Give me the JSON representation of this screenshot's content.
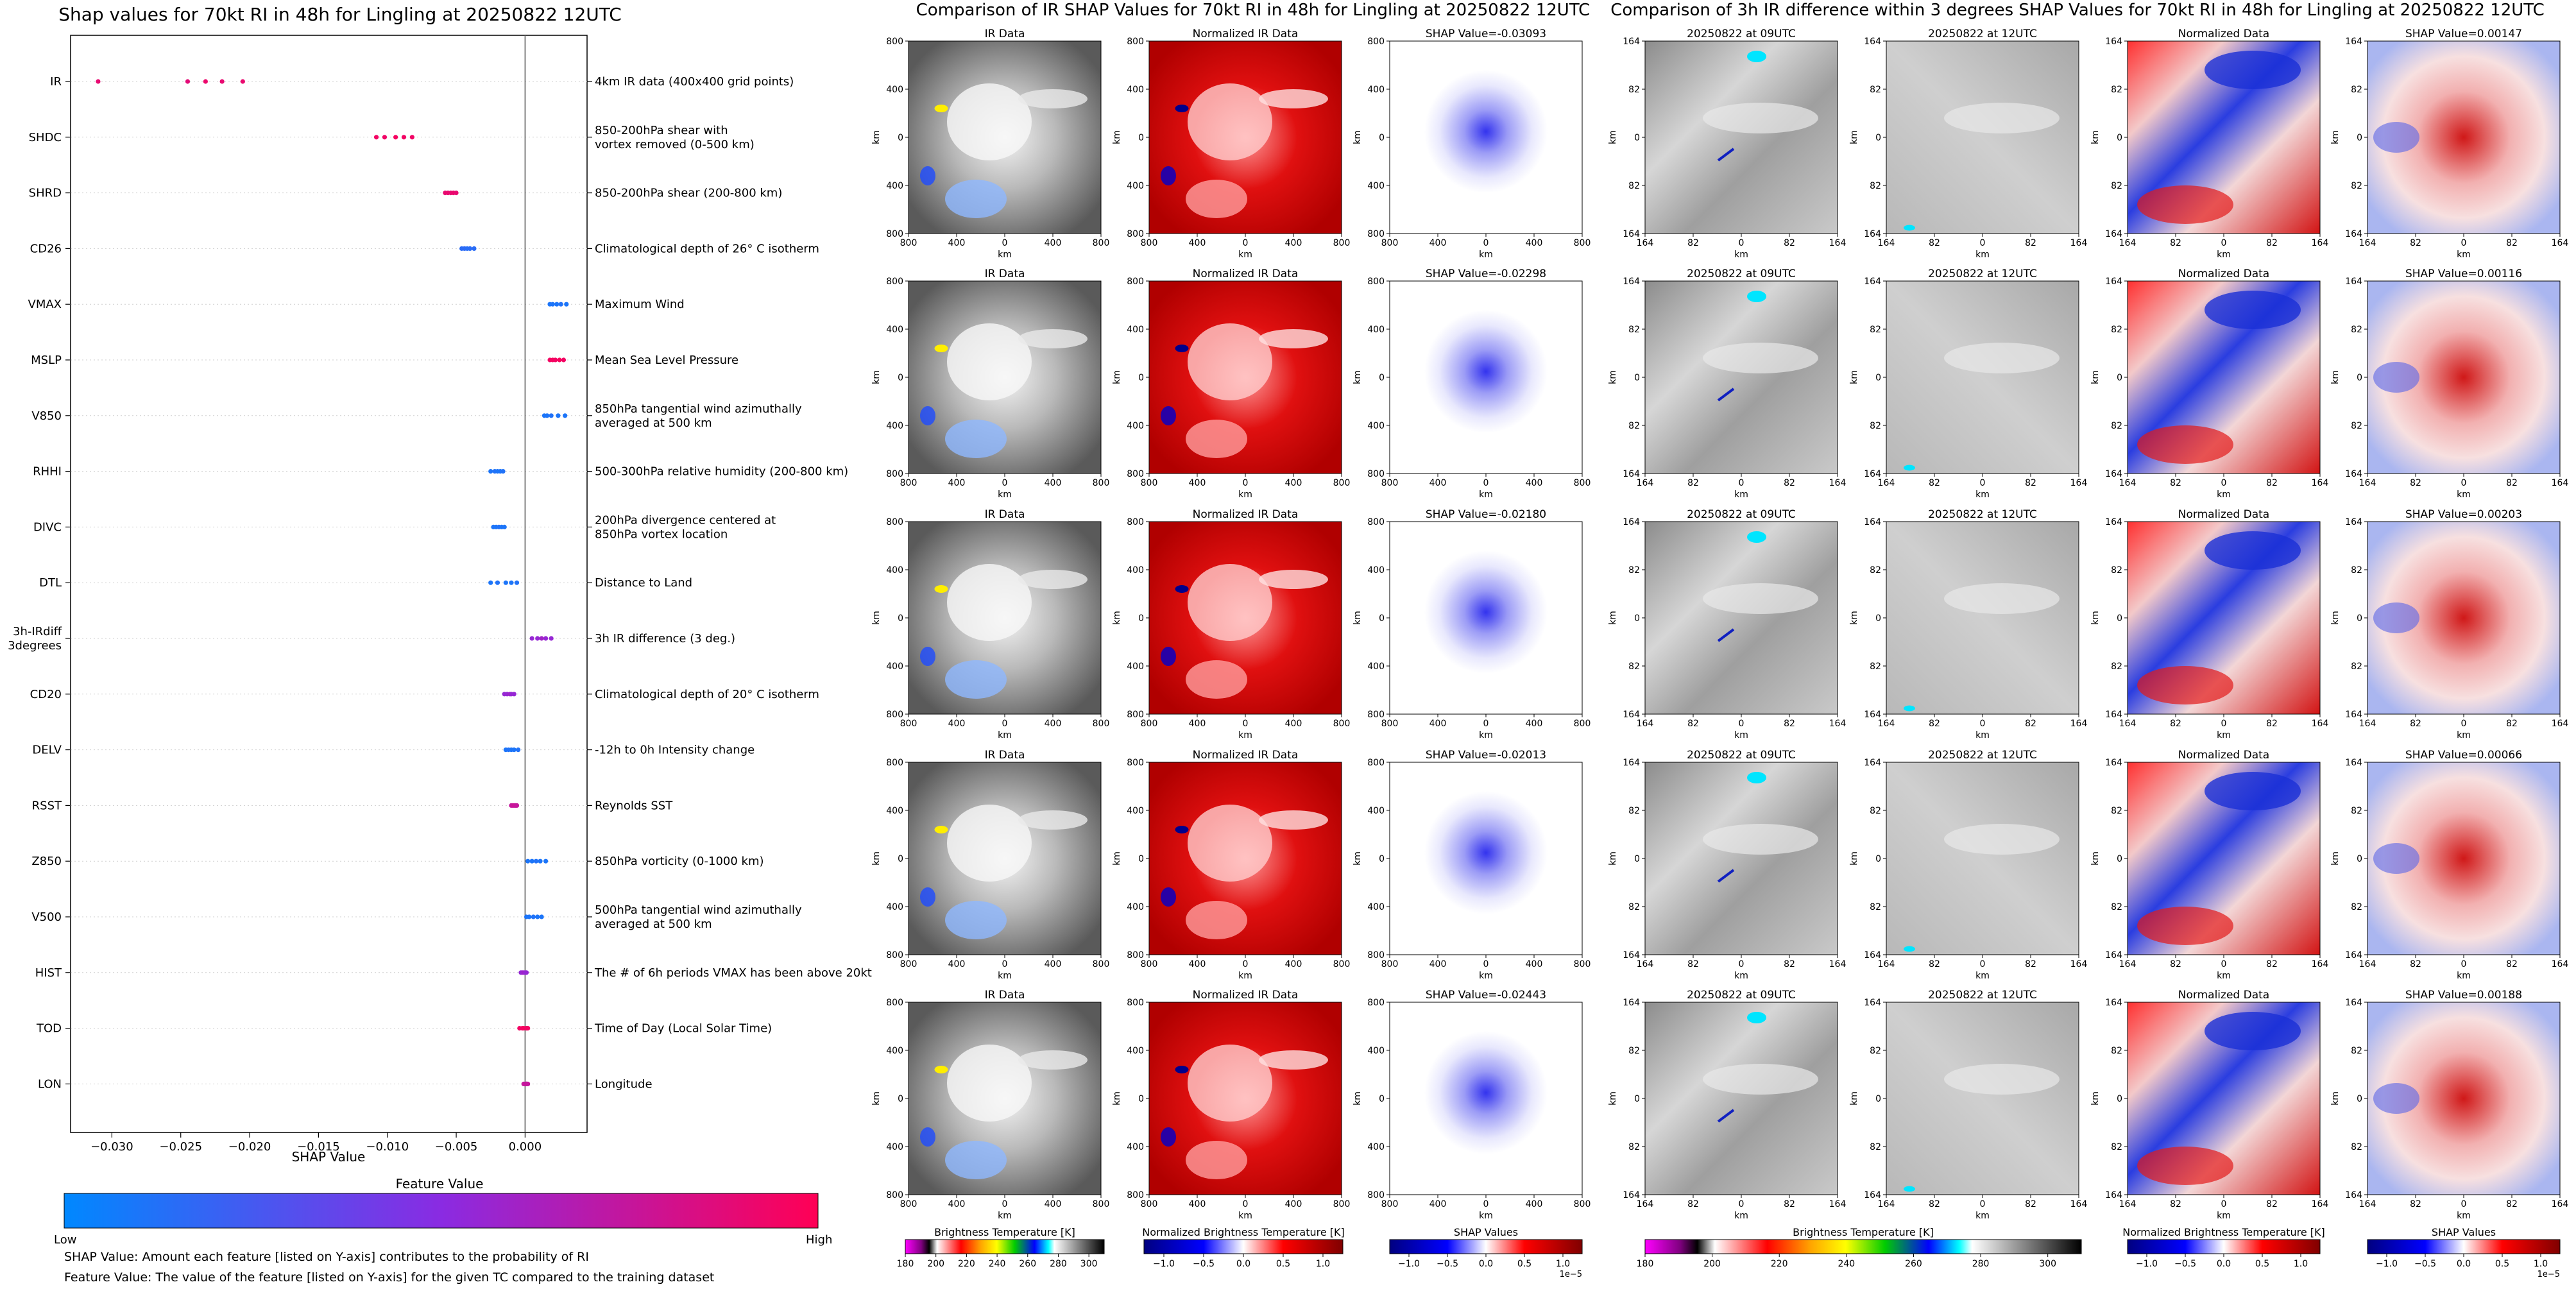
{
  "chart_data": [
    {
      "type": "scatter",
      "title": "Shap values for 70kt RI in 48h for Lingling at 20250822 12UTC",
      "xlabel": "SHAP Value",
      "xlim": [
        -0.033,
        0.0045
      ],
      "xticks": [
        "-0.030",
        "-0.025",
        "-0.020",
        "-0.015",
        "-0.010",
        "-0.005",
        "0.000"
      ],
      "features": [
        {
          "name": "IR",
          "desc": "4km IR data (400x400 grid points)",
          "points": [
            [
              -0.031,
              0.9
            ],
            [
              -0.0245,
              0.88
            ],
            [
              -0.0232,
              0.92
            ],
            [
              -0.022,
              0.9
            ],
            [
              -0.0205,
              0.91
            ]
          ]
        },
        {
          "name": "SHDC",
          "desc": "850-200hPa shear with\nvortex removed (0-500 km)",
          "points": [
            [
              -0.0108,
              0.95
            ],
            [
              -0.0102,
              0.94
            ],
            [
              -0.0094,
              0.96
            ],
            [
              -0.0088,
              0.95
            ],
            [
              -0.0082,
              0.94
            ]
          ]
        },
        {
          "name": "SHRD",
          "desc": "850-200hPa shear (200-800 km)",
          "points": [
            [
              -0.0058,
              0.9
            ],
            [
              -0.0056,
              0.91
            ],
            [
              -0.0054,
              0.9
            ],
            [
              -0.0052,
              0.92
            ],
            [
              -0.005,
              0.9
            ]
          ]
        },
        {
          "name": "CD26",
          "desc": "Climatological depth of 26° C isotherm",
          "points": [
            [
              -0.0046,
              0.15
            ],
            [
              -0.0044,
              0.16
            ],
            [
              -0.0042,
              0.14
            ],
            [
              -0.004,
              0.15
            ],
            [
              -0.0037,
              0.15
            ]
          ]
        },
        {
          "name": "VMAX",
          "desc": "Maximum Wind",
          "points": [
            [
              0.0018,
              0.1
            ],
            [
              0.002,
              0.1
            ],
            [
              0.0023,
              0.1
            ],
            [
              0.0026,
              0.12
            ],
            [
              0.003,
              0.1
            ]
          ]
        },
        {
          "name": "MSLP",
          "desc": "Mean Sea Level Pressure",
          "points": [
            [
              0.0018,
              0.95
            ],
            [
              0.002,
              0.96
            ],
            [
              0.0022,
              0.95
            ],
            [
              0.0025,
              0.97
            ],
            [
              0.0028,
              0.95
            ]
          ]
        },
        {
          "name": "V850",
          "desc": "850hPa tangential wind azimuthally\naveraged at 500 km",
          "points": [
            [
              0.0014,
              0.1
            ],
            [
              0.0016,
              0.1
            ],
            [
              0.0019,
              0.12
            ],
            [
              0.0024,
              0.1
            ],
            [
              0.0029,
              0.1
            ]
          ]
        },
        {
          "name": "RHHI",
          "desc": "500-300hPa relative humidity (200-800 km)",
          "points": [
            [
              -0.0025,
              0.1
            ],
            [
              -0.0022,
              0.12
            ],
            [
              -0.002,
              0.1
            ],
            [
              -0.0018,
              0.1
            ],
            [
              -0.0016,
              0.12
            ]
          ]
        },
        {
          "name": "DIVC",
          "desc": "200hPa divergence centered at\n850hPa vortex location",
          "points": [
            [
              -0.0023,
              0.1
            ],
            [
              -0.0021,
              0.1
            ],
            [
              -0.0019,
              0.12
            ],
            [
              -0.0017,
              0.1
            ],
            [
              -0.0015,
              0.1
            ]
          ]
        },
        {
          "name": "DTL",
          "desc": "Distance to Land",
          "points": [
            [
              -0.0025,
              0.1
            ],
            [
              -0.002,
              0.12
            ],
            [
              -0.0014,
              0.1
            ],
            [
              -0.001,
              0.1
            ],
            [
              -0.0006,
              0.12
            ]
          ]
        },
        {
          "name": "3h-IRdiff\n3degrees",
          "desc": "3h IR difference (3 deg.)",
          "points": [
            [
              0.0005,
              0.55
            ],
            [
              0.0009,
              0.55
            ],
            [
              0.0012,
              0.6
            ],
            [
              0.0015,
              0.55
            ],
            [
              0.0019,
              0.55
            ]
          ]
        },
        {
          "name": "CD20",
          "desc": "Climatological depth of 20° C isotherm",
          "points": [
            [
              -0.0015,
              0.55
            ],
            [
              -0.0013,
              0.55
            ],
            [
              -0.0011,
              0.6
            ],
            [
              -0.001,
              0.55
            ],
            [
              -0.0008,
              0.55
            ]
          ]
        },
        {
          "name": "DELV",
          "desc": "-12h to 0h Intensity change",
          "points": [
            [
              -0.0014,
              0.1
            ],
            [
              -0.0012,
              0.12
            ],
            [
              -0.001,
              0.1
            ],
            [
              -0.0008,
              0.1
            ],
            [
              -0.0005,
              0.12
            ]
          ]
        },
        {
          "name": "RSST",
          "desc": "Reynolds SST",
          "points": [
            [
              -0.001,
              0.75
            ],
            [
              -0.0009,
              0.75
            ],
            [
              -0.0008,
              0.78
            ],
            [
              -0.0007,
              0.75
            ],
            [
              -0.0006,
              0.75
            ]
          ]
        },
        {
          "name": "Z850",
          "desc": "850hPa vorticity (0-1000 km)",
          "points": [
            [
              0.0002,
              0.1
            ],
            [
              0.0005,
              0.1
            ],
            [
              0.0008,
              0.12
            ],
            [
              0.0011,
              0.1
            ],
            [
              0.0015,
              0.1
            ]
          ]
        },
        {
          "name": "V500",
          "desc": "500hPa tangential wind azimuthally\naveraged at 500 km",
          "points": [
            [
              0.0001,
              0.1
            ],
            [
              0.0003,
              0.1
            ],
            [
              0.0006,
              0.12
            ],
            [
              0.0009,
              0.1
            ],
            [
              0.0012,
              0.1
            ]
          ]
        },
        {
          "name": "HIST",
          "desc": "The # of 6h periods VMAX has been above 20kt",
          "points": [
            [
              -0.0003,
              0.55
            ],
            [
              -0.0002,
              0.55
            ],
            [
              -0.0001,
              0.6
            ],
            [
              0.0,
              0.55
            ],
            [
              0.0001,
              0.55
            ]
          ]
        },
        {
          "name": "TOD",
          "desc": "Time of Day (Local Solar Time)",
          "points": [
            [
              -0.0004,
              0.95
            ],
            [
              -0.0002,
              0.95
            ],
            [
              -0.0001,
              0.97
            ],
            [
              0.0001,
              0.95
            ],
            [
              0.0002,
              0.95
            ]
          ]
        },
        {
          "name": "LON",
          "desc": "Longitude",
          "points": [
            [
              -0.0001,
              0.75
            ],
            [
              0.0,
              0.75
            ],
            [
              0.0001,
              0.78
            ],
            [
              0.0001,
              0.75
            ],
            [
              0.0002,
              0.75
            ]
          ]
        }
      ],
      "colorbar_title": "Feature Value",
      "colorbar_low": "Low",
      "colorbar_high": "High",
      "colors": {
        "low": "#0088ff",
        "mid": "#8a2be2",
        "high": "#ff0055"
      },
      "notes": [
        "SHAP Value: Amount each feature [listed on Y-axis] contributes to the probability of RI",
        "Feature Value: The value of the feature [listed on Y-axis] for the given TC compared to the training dataset"
      ]
    },
    {
      "type": "heatmap",
      "title": "Comparison of IR SHAP Values for 70kt RI in 48h for Lingling at 20250822 12UTC",
      "column_titles": [
        "IR Data",
        "Normalized IR Data"
      ],
      "shap_titles": [
        "SHAP Value=-0.03093",
        "SHAP Value=-0.02298",
        "SHAP Value=-0.02180",
        "SHAP Value=-0.02013",
        "SHAP Value=-0.02443"
      ],
      "xlabel": "km",
      "ylabel": "km",
      "xticks": [
        "800",
        "400",
        "0",
        "400",
        "800"
      ],
      "yticks": [
        "800",
        "400",
        "0",
        "400",
        "800"
      ],
      "colorbars": [
        {
          "label": "Brightness Temperature [K]",
          "ticks": [
            "180",
            "200",
            "220",
            "240",
            "260",
            "280",
            "300"
          ]
        },
        {
          "label": "Normalized Brightness Temperature [K]",
          "ticks": [
            "−1.0",
            "−0.5",
            "0.0",
            "0.5",
            "1.0"
          ]
        },
        {
          "label": "SHAP Values",
          "ticks": [
            "−1.0",
            "−0.5",
            "0.0",
            "0.5",
            "1.0"
          ],
          "exponent": "1e−5"
        }
      ]
    },
    {
      "type": "heatmap",
      "title": "Comparison of 3h IR difference within 3 degrees SHAP Values for 70kt RI in 48h for Lingling at 20250822 12UTC",
      "column_titles": [
        "20250822 at 09UTC",
        "20250822 at 12UTC",
        "Normalized Data"
      ],
      "shap_titles": [
        "SHAP Value=0.00147",
        "SHAP Value=0.00116",
        "SHAP Value=0.00203",
        "SHAP Value=0.00066",
        "SHAP Value=0.00188"
      ],
      "xlabel": "km",
      "ylabel": "km",
      "xticks": [
        "164",
        "82",
        "0",
        "82",
        "164"
      ],
      "yticks": [
        "164",
        "82",
        "0",
        "82",
        "164"
      ],
      "colorbars": [
        {
          "label": "Brightness Temperature [K]",
          "ticks": [
            "180",
            "200",
            "220",
            "240",
            "260",
            "280",
            "300"
          ]
        },
        {
          "label": "Normalized Brightness Temperature [K]",
          "ticks": [
            "−1.0",
            "−0.5",
            "0.0",
            "0.5",
            "1.0"
          ]
        },
        {
          "label": "SHAP Values",
          "ticks": [
            "−1.0",
            "−0.5",
            "0.0",
            "0.5",
            "1.0"
          ],
          "exponent": "1e−5"
        }
      ]
    }
  ]
}
